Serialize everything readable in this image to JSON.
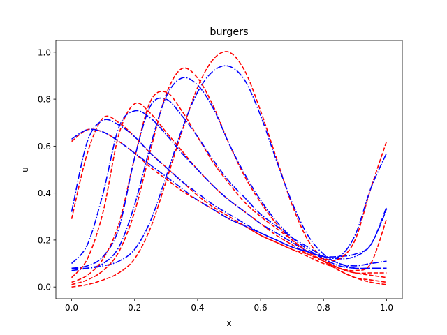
{
  "chart_data": {
    "type": "line",
    "title": "burgers",
    "xlabel": "x",
    "ylabel": "u",
    "xlim": [
      -0.05,
      1.05
    ],
    "ylim": [
      -0.05,
      1.05
    ],
    "xticks": [
      "0.0",
      "0.2",
      "0.4",
      "0.6",
      "0.8",
      "1.0"
    ],
    "yticks": [
      "0.0",
      "0.2",
      "0.4",
      "0.6",
      "0.8",
      "1.0"
    ],
    "grid": false,
    "legend": "none",
    "colors": {
      "reference": "#ff0000",
      "prediction": "#0000ff"
    },
    "styles": {
      "reference": "dashed",
      "prediction": "dashdot"
    },
    "series": [
      {
        "style": "dashed",
        "color": "#ff0000",
        "x": [
          0.0,
          0.05,
          0.1,
          0.15,
          0.2,
          0.25,
          0.3,
          0.35,
          0.4,
          0.45,
          0.5,
          0.55,
          0.6,
          0.65,
          0.7,
          0.75,
          0.8,
          0.85,
          0.9,
          0.95,
          1.0
        ],
        "y": [
          0.0,
          0.01,
          0.03,
          0.06,
          0.12,
          0.25,
          0.45,
          0.66,
          0.85,
          0.97,
          1.0,
          0.92,
          0.75,
          0.55,
          0.35,
          0.2,
          0.12,
          0.08,
          0.06,
          0.06,
          0.06
        ]
      },
      {
        "style": "dashdot",
        "color": "#0000ff",
        "x": [
          0.0,
          0.05,
          0.1,
          0.15,
          0.2,
          0.25,
          0.3,
          0.35,
          0.4,
          0.45,
          0.5,
          0.55,
          0.6,
          0.65,
          0.7,
          0.75,
          0.8,
          0.85,
          0.9,
          0.95,
          1.0
        ],
        "y": [
          0.08,
          0.08,
          0.09,
          0.11,
          0.16,
          0.28,
          0.47,
          0.67,
          0.83,
          0.92,
          0.94,
          0.88,
          0.73,
          0.54,
          0.36,
          0.22,
          0.14,
          0.1,
          0.09,
          0.1,
          0.11
        ]
      },
      {
        "style": "dashed",
        "color": "#ff0000",
        "x": [
          0.0,
          0.05,
          0.1,
          0.15,
          0.2,
          0.25,
          0.3,
          0.35,
          0.4,
          0.45,
          0.5,
          0.55,
          0.6,
          0.65,
          0.7,
          0.75,
          0.8,
          0.85,
          0.9,
          0.95,
          1.0
        ],
        "y": [
          0.01,
          0.03,
          0.07,
          0.15,
          0.32,
          0.58,
          0.82,
          0.93,
          0.89,
          0.77,
          0.61,
          0.47,
          0.36,
          0.27,
          0.2,
          0.15,
          0.11,
          0.07,
          0.04,
          0.02,
          0.01
        ]
      },
      {
        "style": "dashdot",
        "color": "#0000ff",
        "x": [
          0.0,
          0.05,
          0.1,
          0.15,
          0.2,
          0.25,
          0.3,
          0.35,
          0.4,
          0.45,
          0.5,
          0.55,
          0.6,
          0.65,
          0.7,
          0.75,
          0.8,
          0.85,
          0.9,
          0.95,
          1.0
        ],
        "y": [
          0.07,
          0.08,
          0.1,
          0.17,
          0.35,
          0.6,
          0.81,
          0.89,
          0.86,
          0.76,
          0.61,
          0.48,
          0.37,
          0.28,
          0.21,
          0.16,
          0.12,
          0.09,
          0.08,
          0.08,
          0.08
        ]
      },
      {
        "style": "dashed",
        "color": "#ff0000",
        "x": [
          0.0,
          0.05,
          0.1,
          0.15,
          0.2,
          0.25,
          0.3,
          0.35,
          0.4,
          0.45,
          0.5,
          0.55,
          0.6,
          0.65,
          0.7,
          0.75,
          0.8,
          0.85,
          0.9,
          0.95,
          1.0
        ],
        "y": [
          0.02,
          0.05,
          0.12,
          0.27,
          0.55,
          0.79,
          0.83,
          0.75,
          0.64,
          0.53,
          0.44,
          0.36,
          0.3,
          0.25,
          0.2,
          0.15,
          0.11,
          0.07,
          0.04,
          0.03,
          0.02
        ]
      },
      {
        "style": "dashdot",
        "color": "#0000ff",
        "x": [
          0.0,
          0.05,
          0.1,
          0.15,
          0.2,
          0.25,
          0.3,
          0.35,
          0.4,
          0.45,
          0.5,
          0.55,
          0.6,
          0.65,
          0.7,
          0.75,
          0.8,
          0.85,
          0.9,
          0.95,
          1.0
        ],
        "y": [
          0.08,
          0.09,
          0.13,
          0.25,
          0.55,
          0.77,
          0.8,
          0.73,
          0.64,
          0.54,
          0.45,
          0.38,
          0.31,
          0.26,
          0.21,
          0.17,
          0.13,
          0.1,
          0.08,
          0.08,
          0.08
        ]
      },
      {
        "style": "dashed",
        "color": "#ff0000",
        "x": [
          0.0,
          0.05,
          0.1,
          0.15,
          0.2,
          0.25,
          0.3,
          0.35,
          0.4,
          0.45,
          0.5,
          0.55,
          0.6,
          0.65,
          0.7,
          0.75,
          0.8,
          0.85,
          0.9,
          0.95,
          1.0
        ],
        "y": [
          0.04,
          0.12,
          0.32,
          0.65,
          0.78,
          0.74,
          0.66,
          0.58,
          0.5,
          0.43,
          0.37,
          0.32,
          0.27,
          0.22,
          0.18,
          0.14,
          0.11,
          0.08,
          0.06,
          0.05,
          0.04
        ]
      },
      {
        "style": "dashdot",
        "color": "#0000ff",
        "x": [
          0.0,
          0.05,
          0.1,
          0.15,
          0.2,
          0.25,
          0.3,
          0.35,
          0.4,
          0.45,
          0.5,
          0.55,
          0.6,
          0.65,
          0.7,
          0.75,
          0.8,
          0.85,
          0.9,
          0.95,
          1.0
        ],
        "y": [
          0.1,
          0.18,
          0.4,
          0.68,
          0.75,
          0.72,
          0.65,
          0.57,
          0.5,
          0.43,
          0.37,
          0.32,
          0.27,
          0.23,
          0.19,
          0.15,
          0.13,
          0.12,
          0.13,
          0.18,
          0.33
        ]
      },
      {
        "style": "dashed",
        "color": "#ff0000",
        "x": [
          0.0,
          0.05,
          0.1,
          0.15,
          0.2,
          0.25,
          0.3,
          0.35,
          0.4,
          0.45,
          0.5,
          0.55,
          0.6,
          0.65,
          0.7,
          0.75,
          0.8,
          0.85,
          0.9,
          0.95,
          1.0
        ],
        "y": [
          0.29,
          0.57,
          0.72,
          0.7,
          0.64,
          0.57,
          0.51,
          0.45,
          0.39,
          0.34,
          0.3,
          0.26,
          0.22,
          0.19,
          0.16,
          0.13,
          0.1,
          0.08,
          0.07,
          0.1,
          0.29
        ]
      },
      {
        "style": "dashdot",
        "color": "#0000ff",
        "x": [
          0.0,
          0.05,
          0.1,
          0.15,
          0.2,
          0.25,
          0.3,
          0.35,
          0.4,
          0.45,
          0.5,
          0.55,
          0.6,
          0.65,
          0.7,
          0.75,
          0.8,
          0.85,
          0.9,
          0.95,
          1.0
        ],
        "y": [
          0.32,
          0.62,
          0.71,
          0.69,
          0.64,
          0.57,
          0.51,
          0.45,
          0.4,
          0.35,
          0.31,
          0.27,
          0.23,
          0.2,
          0.17,
          0.15,
          0.13,
          0.13,
          0.14,
          0.18,
          0.34
        ]
      },
      {
        "style": "dashed",
        "color": "#ff0000",
        "x": [
          0.0,
          0.05,
          0.1,
          0.15,
          0.2,
          0.25,
          0.3,
          0.35,
          0.4,
          0.45,
          0.5,
          0.55,
          0.6,
          0.65,
          0.7,
          0.75,
          0.8,
          0.85,
          0.9,
          0.95,
          1.0
        ],
        "y": [
          0.62,
          0.67,
          0.66,
          0.62,
          0.57,
          0.51,
          0.46,
          0.41,
          0.37,
          0.33,
          0.29,
          0.26,
          0.22,
          0.19,
          0.16,
          0.14,
          0.12,
          0.12,
          0.2,
          0.42,
          0.62
        ]
      },
      {
        "style": "dashdot",
        "color": "#0000ff",
        "x": [
          0.0,
          0.05,
          0.1,
          0.15,
          0.2,
          0.25,
          0.3,
          0.35,
          0.4,
          0.45,
          0.5,
          0.55,
          0.6,
          0.65,
          0.7,
          0.75,
          0.8,
          0.85,
          0.9,
          0.95,
          1.0
        ],
        "y": [
          0.63,
          0.67,
          0.66,
          0.62,
          0.57,
          0.52,
          0.47,
          0.42,
          0.37,
          0.33,
          0.29,
          0.26,
          0.23,
          0.2,
          0.17,
          0.15,
          0.13,
          0.13,
          0.22,
          0.42,
          0.57
        ]
      }
    ]
  }
}
